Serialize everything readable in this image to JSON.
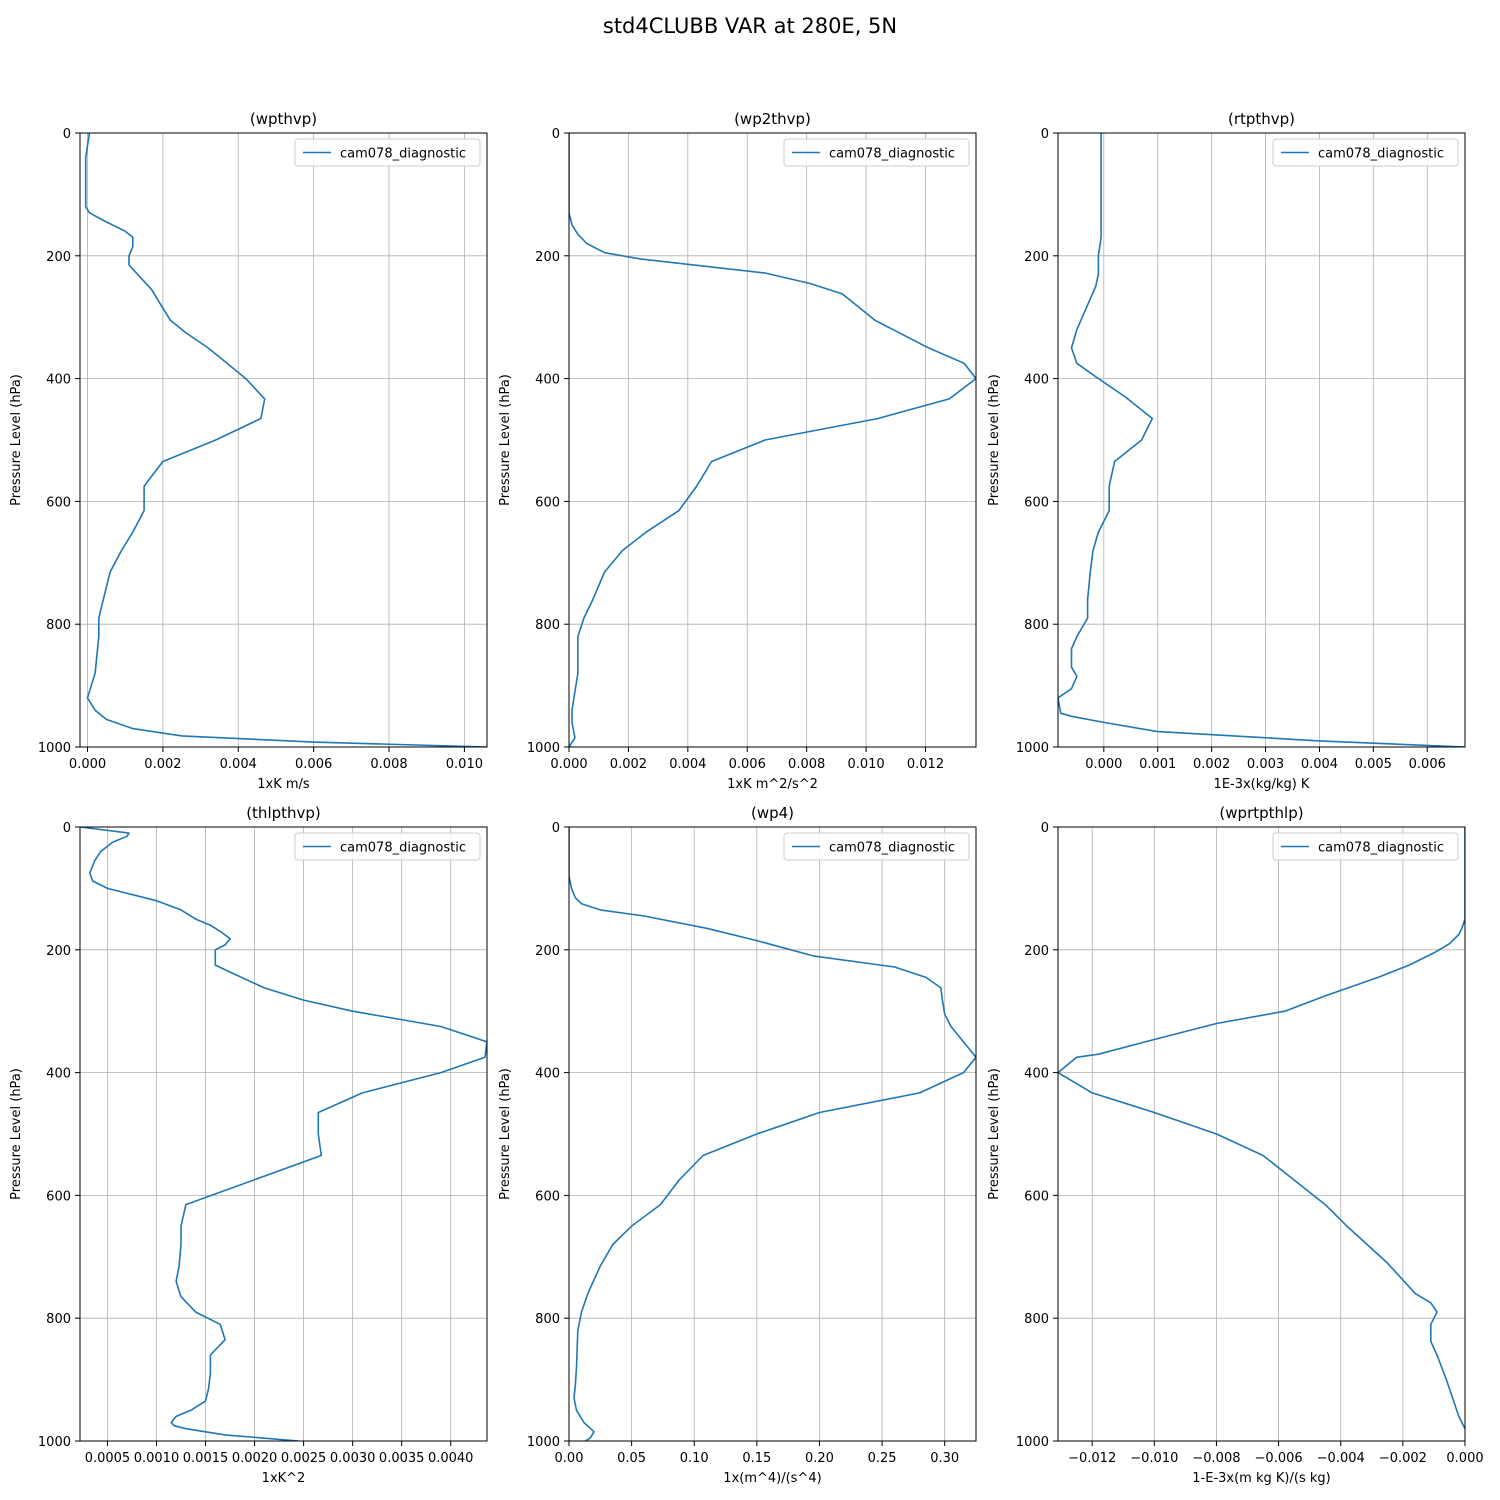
{
  "figure": {
    "title": "std4CLUBB VAR at 280E, 5N"
  },
  "colors": {
    "line": "#1f77b4",
    "grid": "#b0b0b0",
    "axis": "#000000",
    "legend_border": "#cccccc"
  },
  "chart_data": [
    {
      "type": "line",
      "title": "(wpthvp)",
      "xlabel": "1xK m/s",
      "ylabel": "Pressure Level (hPa)",
      "xlim": [
        -0.0002,
        0.0106
      ],
      "ylim": [
        1000,
        0
      ],
      "xticks": [
        0.0,
        0.002,
        0.004,
        0.006,
        0.008,
        0.01
      ],
      "xtick_labels": [
        "0.000",
        "0.002",
        "0.004",
        "0.006",
        "0.008",
        "0.010"
      ],
      "yticks": [
        0,
        200,
        400,
        600,
        800,
        1000
      ],
      "ytick_labels": [
        "0",
        "200",
        "400",
        "600",
        "800",
        "1000"
      ],
      "grid": true,
      "legend_position": "top-right",
      "series": [
        {
          "name": "cam078_diagnostic",
          "x": [
            5e-05,
            -5e-05,
            -5e-05,
            -5e-05,
            5e-05,
            0.0005,
            0.001,
            0.0012,
            0.0012,
            0.0011,
            0.0011,
            0.0014,
            0.0017,
            0.0019,
            0.0022,
            0.0026,
            0.0032,
            0.0037,
            0.0042,
            0.0047,
            0.0046,
            0.0034,
            0.002,
            0.0015,
            0.0015,
            0.0012,
            0.0009,
            0.0006,
            0.0003,
            0.0003,
            0.0002,
            0.0,
            0.0002,
            0.0005,
            0.0012,
            0.0025,
            0.006,
            0.0106
          ],
          "y": [
            0,
            40,
            80,
            120,
            130,
            145,
            160,
            170,
            185,
            200,
            215,
            235,
            255,
            275,
            305,
            325,
            350,
            375,
            400,
            433,
            465,
            500,
            535,
            575,
            615,
            650,
            680,
            715,
            790,
            820,
            880,
            920,
            940,
            955,
            970,
            982,
            992,
            1000
          ]
        }
      ]
    },
    {
      "type": "line",
      "title": "(wp2thvp)",
      "xlabel": "1xK m^2/s^2",
      "ylabel": "Pressure Level (hPa)",
      "xlim": [
        0.0,
        0.0137
      ],
      "ylim": [
        1000,
        0
      ],
      "xticks": [
        0.0,
        0.002,
        0.004,
        0.006,
        0.008,
        0.01,
        0.012
      ],
      "xtick_labels": [
        "0.000",
        "0.002",
        "0.004",
        "0.006",
        "0.008",
        "0.010",
        "0.012"
      ],
      "yticks": [
        0,
        200,
        400,
        600,
        800,
        1000
      ],
      "ytick_labels": [
        "0",
        "200",
        "400",
        "600",
        "800",
        "1000"
      ],
      "grid": true,
      "legend_position": "top-right",
      "series": [
        {
          "name": "cam078_diagnostic",
          "x": [
            0.0,
            0.0,
            0.0001,
            0.0003,
            0.0006,
            0.0012,
            0.0024,
            0.0066,
            0.0081,
            0.0092,
            0.0103,
            0.0121,
            0.0133,
            0.0137,
            0.0128,
            0.0104,
            0.0066,
            0.0048,
            0.0043,
            0.0037,
            0.0026,
            0.0018,
            0.0012,
            0.0008,
            0.0005,
            0.0003,
            0.0003,
            0.0003,
            0.0002,
            0.0001,
            0.0001,
            0.0002,
            0.0
          ],
          "y": [
            0,
            130,
            150,
            165,
            180,
            195,
            205,
            228,
            245,
            262,
            305,
            350,
            375,
            400,
            433,
            465,
            500,
            535,
            575,
            615,
            650,
            680,
            715,
            760,
            790,
            820,
            850,
            880,
            910,
            940,
            960,
            985,
            1000
          ]
        }
      ]
    },
    {
      "type": "line",
      "title": "(rtpthvp)",
      "xlabel": "1E-3x(kg/kg) K",
      "ylabel": "Pressure Level (hPa)",
      "xlim": [
        -0.00085,
        0.0067
      ],
      "ylim": [
        1000,
        0
      ],
      "xticks": [
        0.0,
        0.001,
        0.002,
        0.003,
        0.004,
        0.005,
        0.006
      ],
      "xtick_labels": [
        "0.000",
        "0.001",
        "0.002",
        "0.003",
        "0.004",
        "0.005",
        "0.006"
      ],
      "yticks": [
        0,
        200,
        400,
        600,
        800,
        1000
      ],
      "ytick_labels": [
        "0",
        "200",
        "400",
        "600",
        "800",
        "1000"
      ],
      "grid": true,
      "legend_position": "top-right",
      "series": [
        {
          "name": "cam078_diagnostic",
          "x": [
            -5e-05,
            -5e-05,
            -5e-05,
            -5e-05,
            -0.0001,
            -0.0001,
            -0.00015,
            -0.0003,
            -0.0005,
            -0.0006,
            -0.0005,
            -0.0001,
            0.0004,
            0.0009,
            0.0007,
            0.0002,
            0.0001,
            0.0001,
            -0.0001,
            -0.0002,
            -0.00025,
            -0.0003,
            -0.0003,
            -0.0005,
            -0.0006,
            -0.0006,
            -0.0005,
            -0.0006,
            -0.00085,
            -0.0008,
            -0.0006,
            0.0,
            0.001,
            0.004,
            0.0067
          ],
          "y": [
            0,
            60,
            120,
            170,
            200,
            230,
            250,
            280,
            320,
            350,
            375,
            400,
            430,
            465,
            500,
            535,
            575,
            615,
            650,
            680,
            715,
            760,
            790,
            820,
            840,
            870,
            885,
            905,
            920,
            945,
            950,
            960,
            975,
            990,
            1000
          ]
        }
      ]
    },
    {
      "type": "line",
      "title": "(thlpthvp)",
      "xlabel": "1xK^2",
      "ylabel": "Pressure Level (hPa)",
      "xlim": [
        0.00022,
        0.00437
      ],
      "ylim": [
        1000,
        0
      ],
      "xticks": [
        0.0005,
        0.001,
        0.0015,
        0.002,
        0.0025,
        0.003,
        0.0035,
        0.004
      ],
      "xtick_labels": [
        "0.0005",
        "0.0010",
        "0.0015",
        "0.0020",
        "0.0025",
        "0.0030",
        "0.0035",
        "0.0040"
      ],
      "yticks": [
        0,
        200,
        400,
        600,
        800,
        1000
      ],
      "ytick_labels": [
        "0",
        "200",
        "400",
        "600",
        "800",
        "1000"
      ],
      "grid": true,
      "legend_position": "top-right",
      "series": [
        {
          "name": "cam078_diagnostic",
          "x": [
            0.00022,
            0.00072,
            0.0007,
            0.00055,
            0.00043,
            0.00037,
            0.00032,
            0.00035,
            0.0005,
            0.001,
            0.00125,
            0.0014,
            0.00155,
            0.00165,
            0.00175,
            0.0017,
            0.0016,
            0.0016,
            0.0018,
            0.0021,
            0.0025,
            0.003,
            0.0039,
            0.00437,
            0.00435,
            0.0039,
            0.0031,
            0.00265,
            0.00265,
            0.00268,
            0.0013,
            0.00125,
            0.00125,
            0.00123,
            0.0012,
            0.00125,
            0.0014,
            0.00165,
            0.0017,
            0.00155,
            0.00155,
            0.00153,
            0.0015,
            0.00135,
            0.0012,
            0.00115,
            0.00118,
            0.0013,
            0.0017,
            0.00245
          ],
          "y": [
            0,
            10,
            15,
            25,
            40,
            55,
            75,
            88,
            100,
            120,
            135,
            150,
            160,
            170,
            182,
            192,
            200,
            225,
            240,
            262,
            282,
            300,
            325,
            350,
            375,
            400,
            433,
            465,
            500,
            535,
            615,
            650,
            680,
            715,
            740,
            765,
            790,
            810,
            835,
            860,
            890,
            915,
            935,
            950,
            960,
            970,
            975,
            980,
            990,
            1000
          ]
        }
      ]
    },
    {
      "type": "line",
      "title": "(wp4)",
      "xlabel": "1x(m^4)/(s^4)",
      "ylabel": "Pressure Level (hPa)",
      "xlim": [
        0.0,
        0.325
      ],
      "ylim": [
        1000,
        0
      ],
      "xticks": [
        0.0,
        0.05,
        0.1,
        0.15,
        0.2,
        0.25,
        0.3
      ],
      "xtick_labels": [
        "0.00",
        "0.05",
        "0.10",
        "0.15",
        "0.20",
        "0.25",
        "0.30"
      ],
      "yticks": [
        0,
        200,
        400,
        600,
        800,
        1000
      ],
      "ytick_labels": [
        "0",
        "200",
        "400",
        "600",
        "800",
        "1000"
      ],
      "grid": true,
      "legend_position": "top-right",
      "series": [
        {
          "name": "cam078_diagnostic",
          "x": [
            0.0,
            0.0,
            0.002,
            0.005,
            0.01,
            0.025,
            0.06,
            0.11,
            0.15,
            0.195,
            0.26,
            0.285,
            0.297,
            0.298,
            0.3,
            0.305,
            0.315,
            0.325,
            0.315,
            0.28,
            0.2,
            0.15,
            0.107,
            0.088,
            0.073,
            0.05,
            0.035,
            0.025,
            0.015,
            0.01,
            0.007,
            0.006,
            0.005,
            0.004,
            0.006,
            0.012,
            0.02,
            0.017,
            0.013
          ],
          "y": [
            0,
            80,
            100,
            115,
            125,
            135,
            145,
            165,
            185,
            210,
            228,
            245,
            262,
            280,
            305,
            325,
            350,
            375,
            400,
            433,
            465,
            500,
            535,
            575,
            615,
            650,
            680,
            715,
            760,
            790,
            820,
            880,
            910,
            930,
            950,
            970,
            985,
            995,
            1000
          ]
        }
      ]
    },
    {
      "type": "line",
      "title": "(wprtpthlp)",
      "xlabel": "1-E-3x(m kg K)/(s kg)",
      "ylabel": "Pressure Level (hPa)",
      "xlim": [
        -0.0131,
        0.0
      ],
      "ylim": [
        1000,
        0
      ],
      "xticks": [
        -0.012,
        -0.01,
        -0.008,
        -0.006,
        -0.004,
        -0.002,
        0.0
      ],
      "xtick_labels": [
        "−0.012",
        "−0.010",
        "−0.008",
        "−0.006",
        "−0.004",
        "−0.002",
        "0.000"
      ],
      "yticks": [
        0,
        200,
        400,
        600,
        800,
        1000
      ],
      "ytick_labels": [
        "0",
        "200",
        "400",
        "600",
        "800",
        "1000"
      ],
      "grid": true,
      "legend_position": "top-right",
      "series": [
        {
          "name": "cam078_diagnostic",
          "x": [
            0.0,
            0.0,
            -0.0001,
            -0.0002,
            -0.0005,
            -0.001,
            -0.0018,
            -0.0028,
            -0.0045,
            -0.0058,
            -0.008,
            -0.0103,
            -0.0118,
            -0.0125,
            -0.0131,
            -0.012,
            -0.01,
            -0.008,
            -0.0065,
            -0.0055,
            -0.0045,
            -0.0038,
            -0.0025,
            -0.0016,
            -0.0011,
            -0.0009,
            -0.0011,
            -0.0011,
            -0.0009,
            -0.0006,
            -0.0004,
            -0.0002,
            0.0
          ],
          "y": [
            0,
            150,
            165,
            175,
            190,
            205,
            225,
            245,
            275,
            300,
            320,
            350,
            370,
            375,
            400,
            433,
            465,
            500,
            535,
            575,
            615,
            650,
            710,
            760,
            775,
            790,
            810,
            838,
            860,
            900,
            930,
            960,
            980
          ]
        }
      ]
    }
  ]
}
